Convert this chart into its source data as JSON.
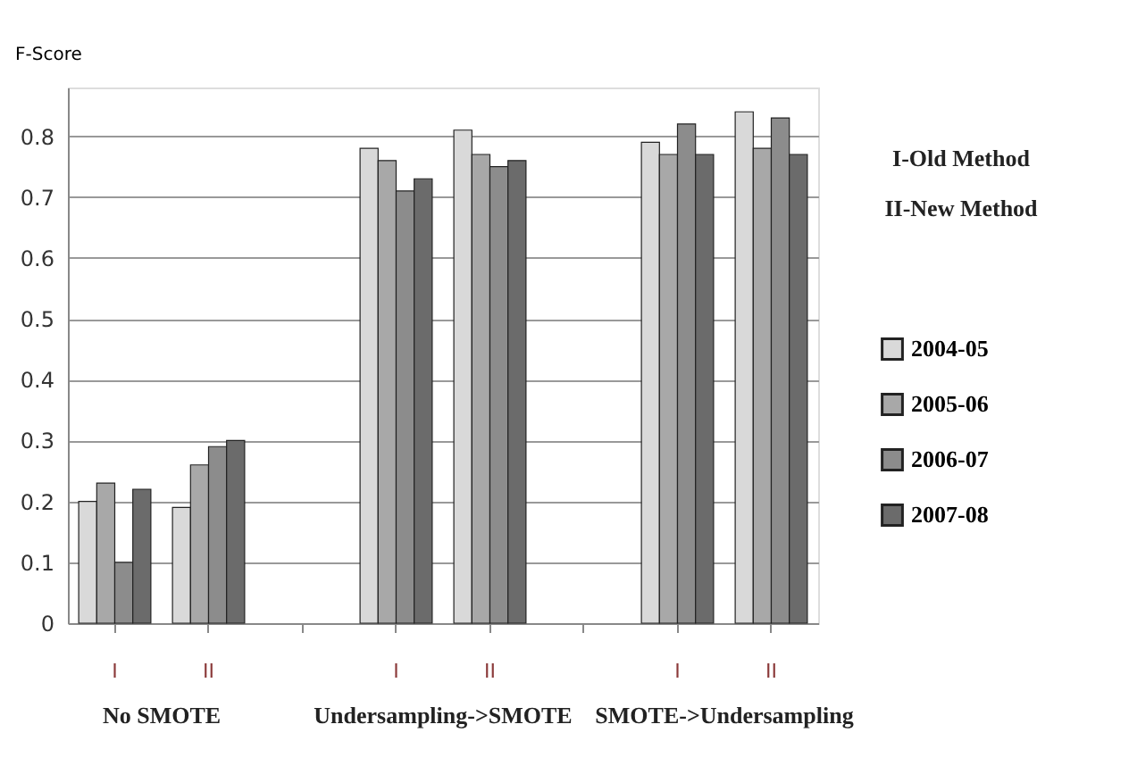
{
  "chart_data": {
    "type": "bar",
    "ylabel": "F-Score",
    "categories": [
      "I",
      "II",
      null,
      "I",
      "II",
      null,
      "I",
      "II"
    ],
    "series": [
      {
        "name": "2004-05",
        "color": "#d9d9d9",
        "values": [
          0.2,
          0.19,
          null,
          0.78,
          0.81,
          null,
          0.79,
          0.84
        ]
      },
      {
        "name": "2005-06",
        "color": "#a8a8a8",
        "values": [
          0.23,
          0.26,
          null,
          0.76,
          0.77,
          null,
          0.77,
          0.78
        ]
      },
      {
        "name": "2006-07",
        "color": "#8c8c8c",
        "values": [
          0.1,
          0.29,
          null,
          0.71,
          0.75,
          null,
          0.82,
          0.83
        ]
      },
      {
        "name": "2007-08",
        "color": "#6b6b6b",
        "values": [
          0.22,
          0.3,
          null,
          0.73,
          0.76,
          null,
          0.77,
          0.77
        ]
      }
    ],
    "ylim": [
      0,
      0.88
    ],
    "yticks": [
      0,
      0.1,
      0.2,
      0.3,
      0.4,
      0.5,
      0.6,
      0.7,
      0.8
    ],
    "grid": "y",
    "legend": "right",
    "annotations": [
      "No SMOTE",
      "Undersampling->SMOTE",
      "SMOTE->Undersampling",
      "I-Old Method",
      "II-New Method"
    ]
  }
}
